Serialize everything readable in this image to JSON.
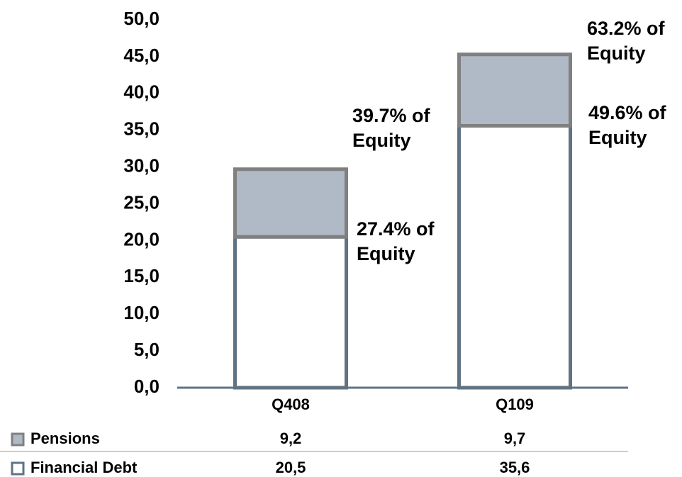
{
  "chart_data": {
    "type": "stacked-bar",
    "categories": [
      "Q408",
      "Q109"
    ],
    "series": [
      {
        "name": "Financial Debt",
        "color": "#ffffff",
        "stroke": "#5f7384",
        "values": [
          20.5,
          35.6
        ],
        "value_labels": [
          "20,5",
          "35,6"
        ]
      },
      {
        "name": "Pensions",
        "color": "#b0b9c6",
        "stroke": "#808080",
        "values": [
          9.2,
          9.7
        ],
        "value_labels": [
          "9,2",
          "9,7"
        ]
      }
    ],
    "ylim": [
      0,
      50
    ],
    "yticks": [
      {
        "value": 0,
        "label": "0,0"
      },
      {
        "value": 5,
        "label": "5,0"
      },
      {
        "value": 10,
        "label": "10,0"
      },
      {
        "value": 15,
        "label": "15,0"
      },
      {
        "value": 20,
        "label": "20,0"
      },
      {
        "value": 25,
        "label": "25,0"
      },
      {
        "value": 30,
        "label": "30,0"
      },
      {
        "value": 35,
        "label": "35,0"
      },
      {
        "value": 40,
        "label": "40,0"
      },
      {
        "value": 45,
        "label": "45,0"
      },
      {
        "value": 50,
        "label": "50,0"
      }
    ],
    "annotations": [
      {
        "lines": [
          "27.4% of",
          "Equity"
        ]
      },
      {
        "lines": [
          "39.7% of",
          "Equity"
        ]
      },
      {
        "lines": [
          "49.6% of",
          "Equity"
        ]
      },
      {
        "lines": [
          "63.2% of",
          "Equity"
        ]
      }
    ]
  }
}
